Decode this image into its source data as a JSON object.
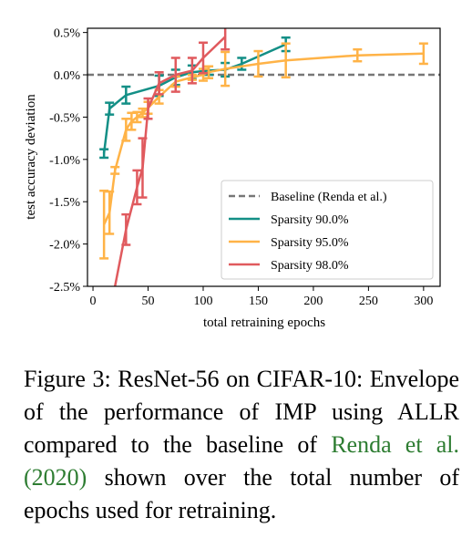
{
  "chart_data": {
    "type": "line",
    "xlabel": "total retraining epochs",
    "ylabel": "test accuracy deviation",
    "xlim": [
      -5,
      315
    ],
    "ylim": [
      -2.5,
      0.55
    ],
    "xticks": [
      0,
      50,
      100,
      150,
      200,
      250,
      300
    ],
    "xtick_labels": [
      "0",
      "50",
      "100",
      "150",
      "200",
      "250",
      "300"
    ],
    "yticks": [
      -2.5,
      -2.0,
      -1.5,
      -1.0,
      -0.5,
      0.0,
      0.5
    ],
    "ytick_labels": [
      "-2.5%",
      "-2.0%",
      "-1.5%",
      "-1.0%",
      "-0.5%",
      "0.0%",
      "0.5%"
    ],
    "baseline": {
      "name": "Baseline (Renda et al.)",
      "y": 0.0,
      "color": "#777777",
      "style": "dashed"
    },
    "series": [
      {
        "name": "Sparsity 90.0%",
        "color": "#138f86",
        "x": [
          10,
          15,
          30,
          60,
          75,
          90,
          105,
          120,
          135,
          175
        ],
        "y": [
          -0.93,
          -0.4,
          -0.24,
          -0.13,
          -0.03,
          0.03,
          0.05,
          0.06,
          0.13,
          0.36
        ],
        "err": [
          0.05,
          0.07,
          0.1,
          0.12,
          0.09,
          0.08,
          0.05,
          0.08,
          0.07,
          0.08
        ]
      },
      {
        "name": "Sparsity 95.0%",
        "color": "#ffb347",
        "x": [
          10,
          15,
          20,
          30,
          35,
          40,
          45,
          50,
          60,
          75,
          90,
          100,
          105,
          120,
          150,
          175,
          240,
          300
        ],
        "y": [
          -1.77,
          -1.63,
          -1.13,
          -0.65,
          -0.55,
          -0.5,
          -0.45,
          -0.39,
          -0.26,
          -0.08,
          -0.03,
          0.0,
          0.03,
          0.07,
          0.13,
          0.17,
          0.23,
          0.25
        ],
        "err": [
          0.4,
          0.25,
          0.04,
          0.13,
          0.1,
          0.06,
          0.05,
          0.07,
          0.08,
          0.06,
          0.03,
          0.07,
          0.07,
          0.2,
          0.15,
          0.2,
          0.07,
          0.12
        ]
      },
      {
        "name": "Sparsity 98.0%",
        "color": "#e05a5e",
        "x": [
          20,
          30,
          40,
          45,
          50,
          60,
          75,
          90,
          100,
          120
        ],
        "y": [
          -2.5,
          -1.83,
          -1.33,
          -1.1,
          -0.4,
          -0.1,
          0.0,
          0.05,
          0.2,
          0.45
        ],
        "err": [
          0.0,
          0.18,
          0.2,
          0.35,
          0.12,
          0.13,
          0.2,
          0.15,
          0.18,
          0.15
        ]
      }
    ],
    "legend_position": "lower-right",
    "grid": false
  },
  "caption": {
    "prefix": "Figure 3: ResNet-56 on CIFAR-10: Envelope of the performance of IMP using ALLR compared to the baseline of ",
    "citation": "Renda et al. (2020)",
    "suffix": " shown over the total number of epochs used for retraining."
  }
}
